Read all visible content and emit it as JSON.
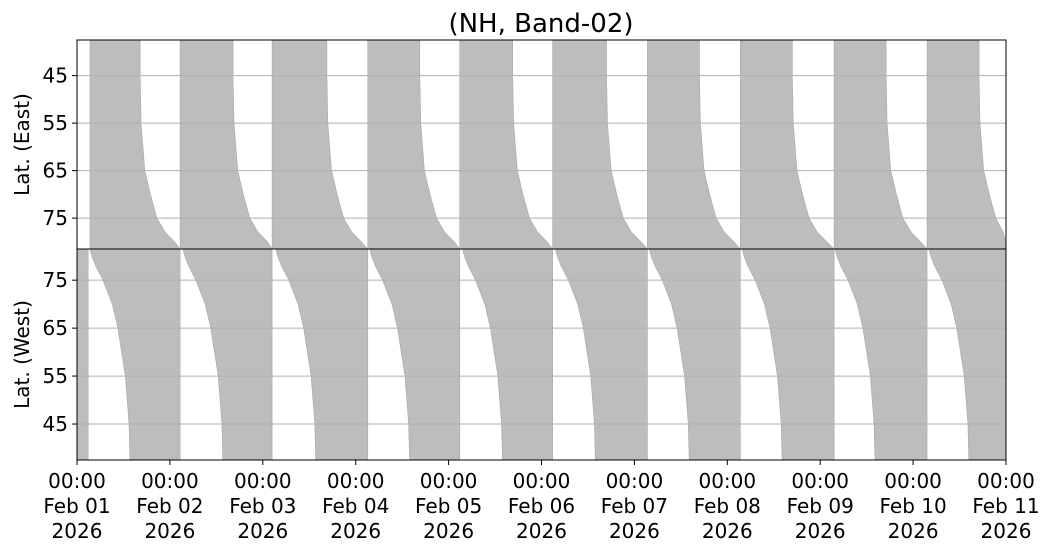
{
  "chart_data": [
    {
      "type": "band",
      "title": "(NH, Band-02)",
      "ylabel": "Lat. (East)",
      "ylim": [
        37.5,
        81.5
      ],
      "yinvert": true,
      "yticks": [
        45,
        55,
        65,
        75
      ],
      "grid": true,
      "xlim": [
        0,
        10
      ],
      "color": "#bdbdbd",
      "lats": [
        37.5,
        45,
        55,
        65,
        70,
        75,
        78,
        80,
        81.5
      ],
      "bands": [
        {
          "start": [
            0.14,
            0.14,
            0.14,
            0.14,
            0.14,
            0.14,
            0.14,
            0.14,
            0.14
          ],
          "end": [
            0.68,
            0.68,
            0.69,
            0.73,
            0.79,
            0.86,
            0.95,
            1.05,
            1.11
          ]
        },
        {
          "start": [
            1.11,
            1.11,
            1.11,
            1.11,
            1.11,
            1.11,
            1.11,
            1.11,
            1.11
          ],
          "end": [
            1.68,
            1.68,
            1.69,
            1.73,
            1.79,
            1.86,
            1.95,
            2.05,
            2.1
          ]
        },
        {
          "start": [
            2.1,
            2.1,
            2.1,
            2.1,
            2.1,
            2.1,
            2.1,
            2.1,
            2.1
          ],
          "end": [
            2.69,
            2.69,
            2.7,
            2.74,
            2.8,
            2.87,
            2.96,
            3.06,
            3.13
          ]
        },
        {
          "start": [
            3.13,
            3.13,
            3.13,
            3.13,
            3.13,
            3.13,
            3.13,
            3.13,
            3.13
          ],
          "end": [
            3.69,
            3.69,
            3.7,
            3.74,
            3.8,
            3.87,
            3.96,
            4.06,
            4.12
          ]
        },
        {
          "start": [
            4.12,
            4.12,
            4.12,
            4.12,
            4.12,
            4.12,
            4.12,
            4.12,
            4.12
          ],
          "end": [
            4.69,
            4.69,
            4.7,
            4.74,
            4.8,
            4.87,
            4.96,
            5.06,
            5.12
          ]
        },
        {
          "start": [
            5.12,
            5.12,
            5.12,
            5.12,
            5.12,
            5.12,
            5.12,
            5.12,
            5.12
          ],
          "end": [
            5.7,
            5.7,
            5.71,
            5.75,
            5.81,
            5.88,
            5.97,
            6.07,
            6.14
          ]
        },
        {
          "start": [
            6.14,
            6.14,
            6.14,
            6.14,
            6.14,
            6.14,
            6.14,
            6.14,
            6.14
          ],
          "end": [
            6.7,
            6.7,
            6.71,
            6.75,
            6.81,
            6.88,
            6.97,
            7.07,
            7.14
          ]
        },
        {
          "start": [
            7.14,
            7.14,
            7.14,
            7.14,
            7.14,
            7.14,
            7.14,
            7.14,
            7.14
          ],
          "end": [
            7.7,
            7.7,
            7.71,
            7.75,
            7.81,
            7.88,
            7.97,
            8.07,
            8.15
          ]
        },
        {
          "start": [
            8.15,
            8.15,
            8.15,
            8.15,
            8.15,
            8.15,
            8.15,
            8.15,
            8.15
          ],
          "end": [
            8.71,
            8.71,
            8.72,
            8.76,
            8.82,
            8.89,
            8.98,
            9.08,
            9.15
          ]
        },
        {
          "start": [
            9.15,
            9.15,
            9.15,
            9.15,
            9.15,
            9.15,
            9.15,
            9.15,
            9.15
          ],
          "end": [
            9.71,
            9.71,
            9.72,
            9.76,
            9.82,
            9.89,
            9.97,
            10,
            10
          ]
        }
      ]
    },
    {
      "type": "band",
      "ylabel": "Lat. (West)",
      "ylim": [
        37.5,
        81.5
      ],
      "yinvert": false,
      "yticks": [
        45,
        55,
        65,
        75
      ],
      "grid": true,
      "xlim": [
        0,
        10
      ],
      "color": "#bdbdbd",
      "xticks": [
        {
          "value": 0,
          "label": "00:00\nFeb 01\n2026"
        },
        {
          "value": 1,
          "label": "00:00\nFeb 02\n2026"
        },
        {
          "value": 2,
          "label": "00:00\nFeb 03\n2026"
        },
        {
          "value": 3,
          "label": "00:00\nFeb 04\n2026"
        },
        {
          "value": 4,
          "label": "00:00\nFeb 05\n2026"
        },
        {
          "value": 5,
          "label": "00:00\nFeb 06\n2026"
        },
        {
          "value": 6,
          "label": "00:00\nFeb 07\n2026"
        },
        {
          "value": 7,
          "label": "00:00\nFeb 08\n2026"
        },
        {
          "value": 8,
          "label": "00:00\nFeb 09\n2026"
        },
        {
          "value": 9,
          "label": "00:00\nFeb 10\n2026"
        },
        {
          "value": 10,
          "label": "00:00\nFeb 11\n2026"
        }
      ],
      "lats": [
        37.5,
        45,
        55,
        65,
        70,
        75,
        78,
        80,
        81.5
      ],
      "bands": [
        {
          "start": [
            0,
            0,
            0,
            0,
            0,
            0,
            0,
            0,
            0
          ],
          "end": [
            0.12,
            0.12,
            0.12,
            0.12,
            0.12,
            0.12,
            0.12,
            0.12,
            0.12
          ]
        },
        {
          "start": [
            0.57,
            0.56,
            0.52,
            0.44,
            0.38,
            0.28,
            0.2,
            0.16,
            0.14
          ],
          "end": [
            1.11,
            1.11,
            1.11,
            1.11,
            1.11,
            1.11,
            1.11,
            1.11,
            1.11
          ]
        },
        {
          "start": [
            1.57,
            1.56,
            1.52,
            1.44,
            1.38,
            1.28,
            1.2,
            1.16,
            1.14
          ],
          "end": [
            2.1,
            2.1,
            2.1,
            2.1,
            2.1,
            2.1,
            2.1,
            2.1,
            2.1
          ]
        },
        {
          "start": [
            2.57,
            2.56,
            2.52,
            2.44,
            2.38,
            2.28,
            2.2,
            2.16,
            2.14
          ],
          "end": [
            3.13,
            3.13,
            3.13,
            3.13,
            3.13,
            3.13,
            3.13,
            3.13,
            3.13
          ]
        },
        {
          "start": [
            3.58,
            3.57,
            3.53,
            3.45,
            3.39,
            3.29,
            3.21,
            3.17,
            3.15
          ],
          "end": [
            4.12,
            4.12,
            4.12,
            4.12,
            4.12,
            4.12,
            4.12,
            4.12,
            4.12
          ]
        },
        {
          "start": [
            4.58,
            4.57,
            4.53,
            4.45,
            4.39,
            4.29,
            4.21,
            4.17,
            4.15
          ],
          "end": [
            5.12,
            5.12,
            5.12,
            5.12,
            5.12,
            5.12,
            5.12,
            5.12,
            5.12
          ]
        },
        {
          "start": [
            5.58,
            5.57,
            5.53,
            5.45,
            5.39,
            5.29,
            5.21,
            5.17,
            5.15
          ],
          "end": [
            6.14,
            6.14,
            6.14,
            6.14,
            6.14,
            6.14,
            6.14,
            6.14,
            6.14
          ]
        },
        {
          "start": [
            6.59,
            6.58,
            6.54,
            6.46,
            6.4,
            6.3,
            6.22,
            6.18,
            6.16
          ],
          "end": [
            7.14,
            7.14,
            7.14,
            7.14,
            7.14,
            7.14,
            7.14,
            7.14,
            7.14
          ]
        },
        {
          "start": [
            7.59,
            7.58,
            7.54,
            7.46,
            7.4,
            7.3,
            7.22,
            7.18,
            7.16
          ],
          "end": [
            8.15,
            8.15,
            8.15,
            8.15,
            8.15,
            8.15,
            8.15,
            8.15,
            8.15
          ]
        },
        {
          "start": [
            8.59,
            8.58,
            8.54,
            8.46,
            8.4,
            8.3,
            8.22,
            8.18,
            8.16
          ],
          "end": [
            9.15,
            9.15,
            9.15,
            9.15,
            9.15,
            9.15,
            9.15,
            9.15,
            9.15
          ]
        },
        {
          "start": [
            9.6,
            9.59,
            9.55,
            9.47,
            9.41,
            9.31,
            9.23,
            9.19,
            9.17
          ],
          "end": [
            10,
            10,
            10,
            10,
            10,
            10,
            10,
            10,
            10
          ]
        }
      ]
    }
  ]
}
